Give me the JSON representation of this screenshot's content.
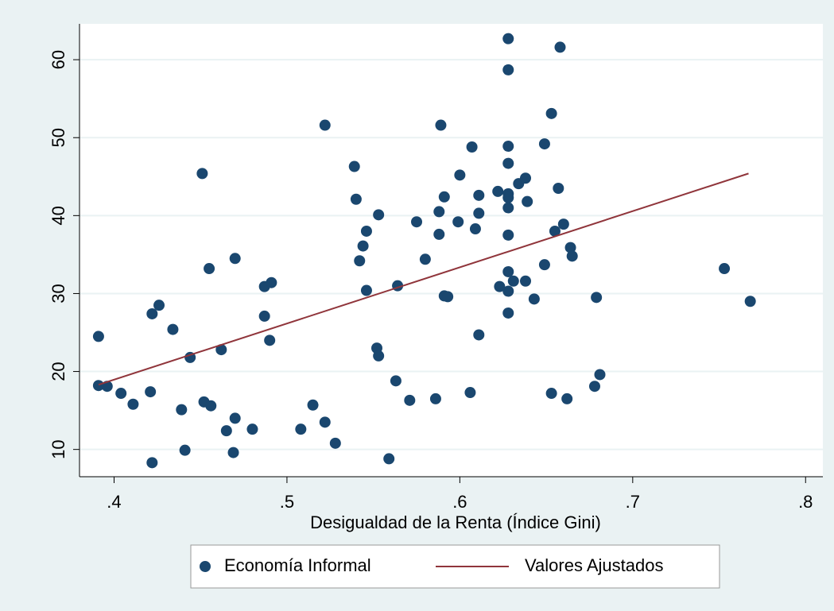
{
  "chart_data": {
    "type": "scatter",
    "xlabel": "Desigualdad de la Renta (Índice Gini)",
    "xlim": [
      0.38,
      0.81
    ],
    "xticks": [
      {
        "value": 0.4,
        "label": ".4"
      },
      {
        "value": 0.5,
        "label": ".5"
      },
      {
        "value": 0.6,
        "label": ".6"
      },
      {
        "value": 0.7,
        "label": ".7"
      },
      {
        "value": 0.8,
        "label": ".8"
      }
    ],
    "ylim": [
      6.5,
      64.6
    ],
    "yticks": [
      10,
      20,
      30,
      40,
      50,
      60
    ],
    "grid": true,
    "legend": "bottom",
    "series": [
      {
        "name": "Economía Informal",
        "type": "scatter",
        "color": "#1a476f",
        "x": [
          0.391,
          0.391,
          0.396,
          0.404,
          0.411,
          0.421,
          0.422,
          0.426,
          0.422,
          0.434,
          0.439,
          0.441,
          0.444,
          0.451,
          0.452,
          0.455,
          0.456,
          0.462,
          0.465,
          0.47,
          0.47,
          0.469,
          0.48,
          0.487,
          0.491,
          0.487,
          0.49,
          0.508,
          0.515,
          0.522,
          0.522,
          0.528,
          0.539,
          0.54,
          0.542,
          0.544,
          0.546,
          0.546,
          0.553,
          0.552,
          0.553,
          0.559,
          0.563,
          0.564,
          0.571,
          0.575,
          0.58,
          0.586,
          0.588,
          0.588,
          0.589,
          0.591,
          0.591,
          0.593,
          0.599,
          0.6,
          0.606,
          0.607,
          0.609,
          0.611,
          0.611,
          0.611,
          0.622,
          0.623,
          0.628,
          0.628,
          0.628,
          0.628,
          0.628,
          0.628,
          0.628,
          0.628,
          0.628,
          0.628,
          0.628,
          0.631,
          0.634,
          0.638,
          0.639,
          0.638,
          0.643,
          0.649,
          0.649,
          0.653,
          0.653,
          0.655,
          0.657,
          0.658,
          0.66,
          0.662,
          0.664,
          0.665,
          0.678,
          0.679,
          0.681,
          0.753,
          0.768
        ],
        "values": [
          24.5,
          18.2,
          18.1,
          17.2,
          15.8,
          17.4,
          27.4,
          28.5,
          8.3,
          25.4,
          15.1,
          9.9,
          21.8,
          45.4,
          16.1,
          33.2,
          15.6,
          22.8,
          12.4,
          34.5,
          14.0,
          9.6,
          12.6,
          30.9,
          31.4,
          27.1,
          24.0,
          12.6,
          15.7,
          13.5,
          51.6,
          10.8,
          46.3,
          42.1,
          34.2,
          36.1,
          38.0,
          30.4,
          40.1,
          23.0,
          22.0,
          8.8,
          18.8,
          31.0,
          16.3,
          39.2,
          34.4,
          16.5,
          40.5,
          37.6,
          51.6,
          29.7,
          42.4,
          29.6,
          39.2,
          45.2,
          17.3,
          48.8,
          38.3,
          24.7,
          42.6,
          40.3,
          43.1,
          30.9,
          62.7,
          58.7,
          48.9,
          46.7,
          42.8,
          42.3,
          41.0,
          37.5,
          32.8,
          30.3,
          27.5,
          31.6,
          44.1,
          44.8,
          41.8,
          31.6,
          29.3,
          49.2,
          33.7,
          53.1,
          17.2,
          38.0,
          43.5,
          61.6,
          38.9,
          16.5,
          35.9,
          34.8,
          18.1,
          29.5,
          19.6,
          33.2,
          29.0
        ]
      },
      {
        "name": "Valores Ajustados",
        "type": "line",
        "color": "#90353b",
        "x": [
          0.391,
          0.767
        ],
        "values": [
          18.3,
          45.4
        ]
      }
    ]
  }
}
